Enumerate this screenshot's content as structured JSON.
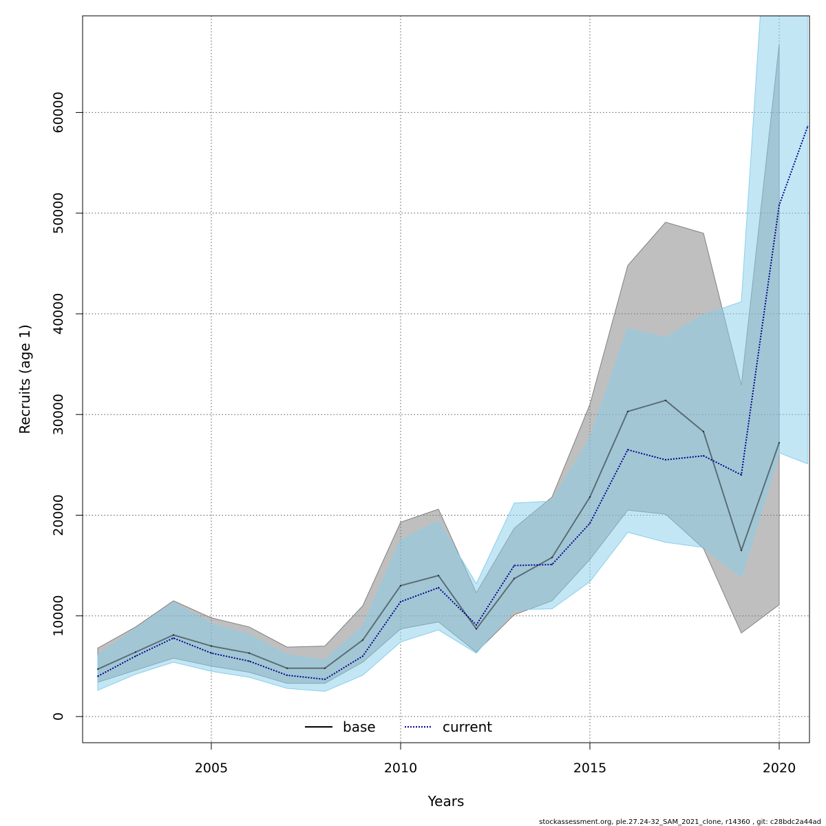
{
  "chart_data": {
    "type": "line",
    "xlabel": "Years",
    "ylabel": "Recruits (age 1)",
    "xlim": [
      2001.6,
      2020.8
    ],
    "ylim": [
      -2600,
      69600
    ],
    "x_ticks": [
      2005,
      2010,
      2015,
      2020
    ],
    "y_ticks": [
      0,
      10000,
      20000,
      30000,
      40000,
      50000,
      60000
    ],
    "grid": true,
    "legend_position": "bottom-center",
    "x": [
      2002,
      2003,
      2004,
      2005,
      2006,
      2007,
      2008,
      2009,
      2010,
      2011,
      2012,
      2013,
      2014,
      2015,
      2016,
      2017,
      2018,
      2019,
      2020
    ],
    "series": [
      {
        "name": "base",
        "line_style": "solid",
        "line_color": "#000000",
        "band_color": "#808080",
        "values": [
          4700,
          6400,
          8100,
          7000,
          6300,
          4800,
          4800,
          7600,
          13000,
          14000,
          8700,
          13700,
          15800,
          21800,
          30300,
          31400,
          28300,
          16500,
          27200
        ],
        "lower": [
          3400,
          4600,
          5800,
          5000,
          4400,
          3300,
          3300,
          5400,
          8700,
          9400,
          6400,
          10100,
          11500,
          15600,
          20500,
          20100,
          16700,
          8300,
          11100
        ],
        "upper": [
          6800,
          8900,
          11500,
          9800,
          8900,
          6900,
          7000,
          11000,
          19300,
          20600,
          12300,
          18700,
          21800,
          31000,
          44800,
          49100,
          48000,
          32900,
          66800
        ]
      },
      {
        "name": "current",
        "line_style": "dotted",
        "line_color": "#00008b",
        "band_color": "#87ceeb",
        "values": [
          4000,
          6000,
          7800,
          6300,
          5500,
          4100,
          3700,
          6000,
          11400,
          12800,
          9100,
          15000,
          15100,
          19200,
          26500,
          25500,
          25900,
          24000,
          50800,
          58600
        ],
        "x": [
          2002,
          2003,
          2004,
          2005,
          2006,
          2007,
          2008,
          2009,
          2010,
          2011,
          2012,
          2013,
          2014,
          2015,
          2016,
          2017,
          2018,
          2019,
          2020,
          2020.75
        ],
        "lower": [
          2600,
          4200,
          5400,
          4500,
          3900,
          2800,
          2500,
          4100,
          7400,
          8600,
          6300,
          10600,
          10700,
          13400,
          18300,
          17300,
          16800,
          13900,
          26200,
          25100
        ],
        "upper": [
          6100,
          8700,
          11300,
          9200,
          8100,
          6100,
          5600,
          8900,
          17500,
          19400,
          13200,
          21200,
          21400,
          27600,
          38500,
          37600,
          39900,
          41200,
          98000,
          98000
        ]
      }
    ]
  },
  "footer": "stockassessment.org, ple.27.24-32_SAM_2021_clone, r14360 , git: c28bdc2a44ad"
}
